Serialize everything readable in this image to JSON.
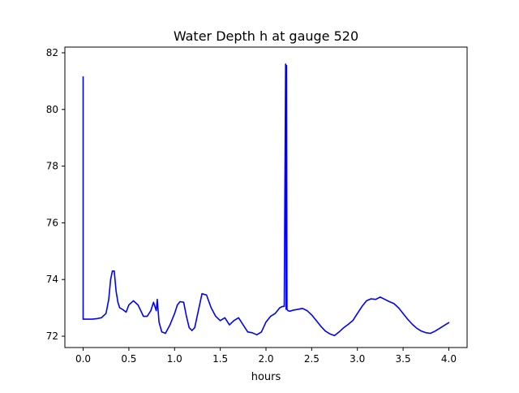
{
  "chart_data": {
    "type": "line",
    "title": "Water Depth h at gauge 520",
    "xlabel": "hours",
    "ylabel": "",
    "xlim": [
      -0.2,
      4.2
    ],
    "ylim": [
      71.6,
      82.2
    ],
    "xticks": [
      0.0,
      0.5,
      1.0,
      1.5,
      2.0,
      2.5,
      3.0,
      3.5,
      4.0
    ],
    "xtick_labels": [
      "0.0",
      "0.5",
      "1.0",
      "1.5",
      "2.0",
      "2.5",
      "3.0",
      "3.5",
      "4.0"
    ],
    "yticks": [
      72,
      74,
      76,
      78,
      80,
      82
    ],
    "ytick_labels": [
      "72",
      "74",
      "76",
      "78",
      "80",
      "82"
    ],
    "grid": false,
    "series": [
      {
        "color": "#0000ff",
        "x": [
          0.0,
          0.0,
          0.0,
          0.05,
          0.1,
          0.15,
          0.2,
          0.25,
          0.28,
          0.3,
          0.32,
          0.34,
          0.36,
          0.38,
          0.4,
          0.43,
          0.47,
          0.5,
          0.55,
          0.6,
          0.63,
          0.66,
          0.7,
          0.74,
          0.77,
          0.8,
          0.81,
          0.83,
          0.86,
          0.9,
          0.95,
          1.0,
          1.03,
          1.06,
          1.1,
          1.13,
          1.16,
          1.19,
          1.22,
          1.26,
          1.3,
          1.35,
          1.4,
          1.45,
          1.5,
          1.55,
          1.6,
          1.65,
          1.7,
          1.75,
          1.8,
          1.85,
          1.9,
          1.95,
          2.0,
          2.05,
          2.1,
          2.15,
          2.18,
          2.2,
          2.215,
          2.22,
          2.225,
          2.23,
          2.23,
          2.235,
          2.24,
          2.26,
          2.3,
          2.35,
          2.4,
          2.45,
          2.5,
          2.55,
          2.6,
          2.65,
          2.7,
          2.75,
          2.8,
          2.85,
          2.9,
          2.95,
          3.0,
          3.05,
          3.1,
          3.15,
          3.2,
          3.25,
          3.3,
          3.35,
          3.4,
          3.45,
          3.5,
          3.55,
          3.6,
          3.65,
          3.7,
          3.75,
          3.8,
          3.85,
          3.9,
          3.95,
          4.0
        ],
        "y": [
          72.6,
          81.15,
          72.6,
          72.6,
          72.6,
          72.62,
          72.65,
          72.8,
          73.3,
          74.0,
          74.3,
          74.3,
          73.6,
          73.2,
          73.0,
          72.95,
          72.85,
          73.1,
          73.25,
          73.1,
          72.9,
          72.7,
          72.7,
          72.9,
          73.2,
          72.9,
          73.3,
          72.5,
          72.15,
          72.1,
          72.4,
          72.8,
          73.1,
          73.22,
          73.2,
          72.7,
          72.3,
          72.2,
          72.3,
          72.9,
          73.5,
          73.45,
          73.0,
          72.7,
          72.55,
          72.65,
          72.4,
          72.55,
          72.65,
          72.4,
          72.15,
          72.12,
          72.05,
          72.15,
          72.5,
          72.7,
          72.8,
          73.0,
          73.05,
          73.05,
          81.6,
          72.95,
          81.55,
          72.95,
          72.95,
          72.92,
          72.9,
          72.88,
          72.92,
          72.95,
          72.98,
          72.9,
          72.75,
          72.55,
          72.35,
          72.18,
          72.08,
          72.02,
          72.15,
          72.3,
          72.42,
          72.55,
          72.8,
          73.05,
          73.25,
          73.32,
          73.3,
          73.38,
          73.3,
          73.22,
          73.15,
          73.0,
          72.8,
          72.6,
          72.42,
          72.28,
          72.18,
          72.12,
          72.1,
          72.18,
          72.28,
          72.38,
          72.48
        ]
      }
    ]
  }
}
